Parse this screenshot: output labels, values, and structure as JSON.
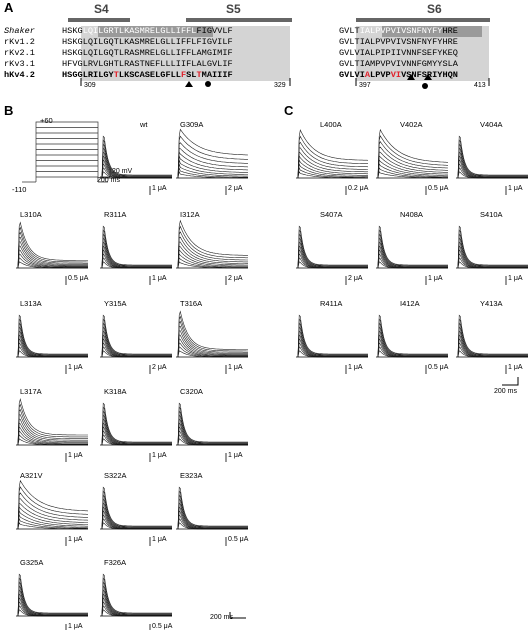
{
  "panels": {
    "a": "A",
    "b": "B",
    "c": "C"
  },
  "segments": {
    "s4": "S4",
    "s5": "S5",
    "s6": "S6"
  },
  "sequences": [
    {
      "name": "Shaker",
      "left": "HSKGLQILGRTLKASMRELGLLIFFLFIGVVLF",
      "right": "GVLTIALPVPVIVSNFNYFYHRE",
      "italic": true,
      "bold": false
    },
    {
      "name": "rKv1.2",
      "left": "HSKGLQILGQTLKASMRELGLLIFFLFIGVILF",
      "right": "GVLTIALPVPVIVSNFNYFYHRE",
      "italic": false,
      "bold": false
    },
    {
      "name": "rKv2.1",
      "left": "HSKGLQILGQTLRASMRELGLLIFFLAMGIMIF",
      "right": "GVLVIALPIPIIVNNFSEFYKEQ",
      "italic": false,
      "bold": false
    },
    {
      "name": "rKv3.1",
      "left": "HFVGLRVLGHTLRASTNEFLLLIIFLALGVLIF",
      "right": "GVLTIAMPVPVIVNNFGMYYSLA",
      "italic": false,
      "bold": false
    },
    {
      "name": "hKv4.2",
      "left": "HSGGLRILGYTLKSCASELGFLLFSLTMAIIIF",
      "right": "GVLVIALPVPVIVSNFSRIYHQN",
      "italic": false,
      "bold": true
    }
  ],
  "residue_numbers": {
    "n309": "309",
    "n329": "329",
    "n397": "397",
    "n413": "413"
  },
  "voltage_protocol": {
    "top": "+60",
    "bottom": "-110",
    "scale_v": "20 mV",
    "scale_t": "200 ms"
  },
  "panel_b": [
    {
      "label": "wt",
      "scale": "1 μA"
    },
    {
      "label": "G309A",
      "scale": "2 μA"
    },
    {
      "label": "L310A",
      "scale": "0.5 μA"
    },
    {
      "label": "R311A",
      "scale": "1 μA"
    },
    {
      "label": "I312A",
      "scale": "2 μA"
    },
    {
      "label": "L313A",
      "scale": "1 μA"
    },
    {
      "label": "Y315A",
      "scale": "2 μA"
    },
    {
      "label": "T316A",
      "scale": "1 μA"
    },
    {
      "label": "L317A",
      "scale": "1 μA"
    },
    {
      "label": "K318A",
      "scale": "1 μA"
    },
    {
      "label": "C320A",
      "scale": "1 μA"
    },
    {
      "label": "A321V",
      "scale": "1 μA"
    },
    {
      "label": "S322A",
      "scale": "1 μA"
    },
    {
      "label": "E323A",
      "scale": "0.5 μA"
    },
    {
      "label": "G325A",
      "scale": "1 μA"
    },
    {
      "label": "F326A",
      "scale": "0.5 μA"
    }
  ],
  "panel_b_time_scale": "200 ms",
  "panel_c": [
    {
      "label": "L400A",
      "scale": "0.2 μA"
    },
    {
      "label": "V402A",
      "scale": "0.5 μA"
    },
    {
      "label": "V404A",
      "scale": "1 μA"
    },
    {
      "label": "S407A",
      "scale": "2 μA"
    },
    {
      "label": "N408A",
      "scale": "1 μA"
    },
    {
      "label": "S410A",
      "scale": "1 μA"
    },
    {
      "label": "R411A",
      "scale": "1 μA"
    },
    {
      "label": "I412A",
      "scale": "0.5 μA"
    },
    {
      "label": "Y413A",
      "scale": "1 μA"
    }
  ],
  "panel_c_time_scale": "200 ms"
}
